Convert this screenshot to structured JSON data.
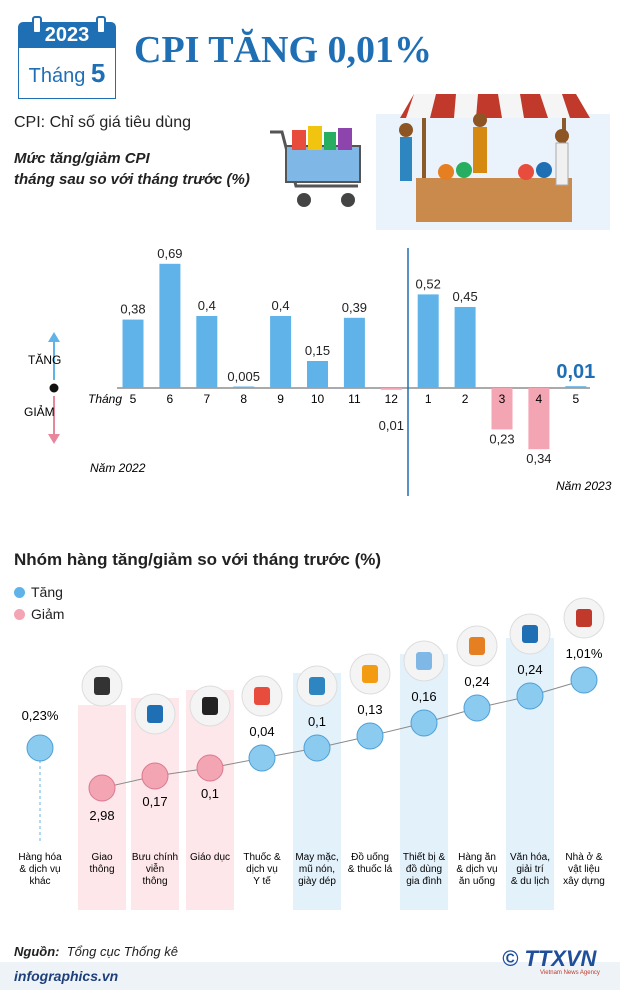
{
  "header": {
    "year": "2023",
    "month_label": "Tháng",
    "month": "5",
    "title": "CPI TĂNG 0,01%"
  },
  "cpi_definition": "CPI: Chỉ số giá tiêu dùng",
  "chart_title_line1": "Mức tăng/giảm CPI",
  "chart_title_line2": "tháng sau so với tháng trước (%)",
  "month_axis_label": "Tháng",
  "increase_label": "TĂNG",
  "decrease_label": "GIẢM",
  "year_2022_label": "Năm 2022",
  "year_2023_label": "Năm 2023",
  "group_section_title": "Nhóm hàng tăng/giảm so với tháng trước (%)",
  "legend": {
    "increase": "Tăng",
    "decrease": "Giảm"
  },
  "source_label": "Nguồn:",
  "source_value": "Tổng cục Thống kê",
  "site": "infographics.vn",
  "logo_text": "TTXVN",
  "logo_sub": "Vietnam News Agency",
  "colors": {
    "increase": "#5fb3e8",
    "decrease": "#f3a5b3",
    "title": "#1f6fb5",
    "highlight": "#1f6fb5"
  },
  "chart_data": [
    {
      "type": "bar",
      "categories": [
        "5",
        "6",
        "7",
        "8",
        "9",
        "10",
        "11",
        "12",
        "1",
        "2",
        "3",
        "4",
        "5"
      ],
      "values": [
        0.38,
        0.69,
        0.4,
        0.005,
        0.4,
        0.15,
        0.39,
        -0.01,
        0.52,
        0.45,
        -0.23,
        -0.34,
        0.01
      ],
      "labels": [
        "0,38",
        "0,69",
        "0,4",
        "0,005",
        "0,4",
        "0,15",
        "0,39",
        "0,01",
        "0,52",
        "0,45",
        "0,23",
        "0,34",
        "0,01"
      ],
      "title": "Mức tăng/giảm CPI tháng sau so với tháng trước (%)",
      "xlabel": "Tháng",
      "ylabel": "",
      "ylim": [
        -0.4,
        0.75
      ]
    },
    {
      "type": "scatter",
      "categories": [
        {
          "line1": "Hàng hóa",
          "line2": "& dịch vụ",
          "line3": "khác"
        },
        {
          "line1": "Giao",
          "line2": "thông",
          "line3": ""
        },
        {
          "line1": "Bưu chính",
          "line2": "viễn",
          "line3": "thông"
        },
        {
          "line1": "Giáo dục",
          "line2": "",
          "line3": ""
        },
        {
          "line1": "Thuốc &",
          "line2": "dịch vụ",
          "line3": "Y tế"
        },
        {
          "line1": "May mặc,",
          "line2": "mũ nón,",
          "line3": "giày dép"
        },
        {
          "line1": "Đồ uống",
          "line2": "& thuốc lá",
          "line3": ""
        },
        {
          "line1": "Thiết bị &",
          "line2": "đồ dùng",
          "line3": "gia đình"
        },
        {
          "line1": "Hàng ăn",
          "line2": "& dịch vụ",
          "line3": "ăn uống"
        },
        {
          "line1": "Văn hóa,",
          "line2": "giải trí",
          "line3": "& du lịch"
        },
        {
          "line1": "Nhà ở &",
          "line2": "vật liệu",
          "line3": "xây dựng"
        }
      ],
      "values": [
        0.23,
        -2.98,
        -0.17,
        -0.1,
        0.04,
        0.1,
        0.13,
        0.16,
        0.24,
        0.24,
        1.01
      ],
      "labels": [
        "0,23%",
        "2,98",
        "0,17",
        "0,1",
        "0,04",
        "0,1",
        "0,13",
        "0,16",
        "0,24",
        "0,24",
        "1,01%"
      ],
      "directions": [
        "increase",
        "decrease",
        "decrease",
        "decrease",
        "increase",
        "increase",
        "increase",
        "increase",
        "increase",
        "increase",
        "increase"
      ],
      "icons": [
        "",
        "traffic-light-icon",
        "radio-tower-icon",
        "graduation-cap-icon",
        "medicine-icon",
        "clothes-icon",
        "drinks-icon",
        "washing-machine-icon",
        "food-plate-icon",
        "film-clapper-icon",
        "construction-icon"
      ]
    }
  ]
}
